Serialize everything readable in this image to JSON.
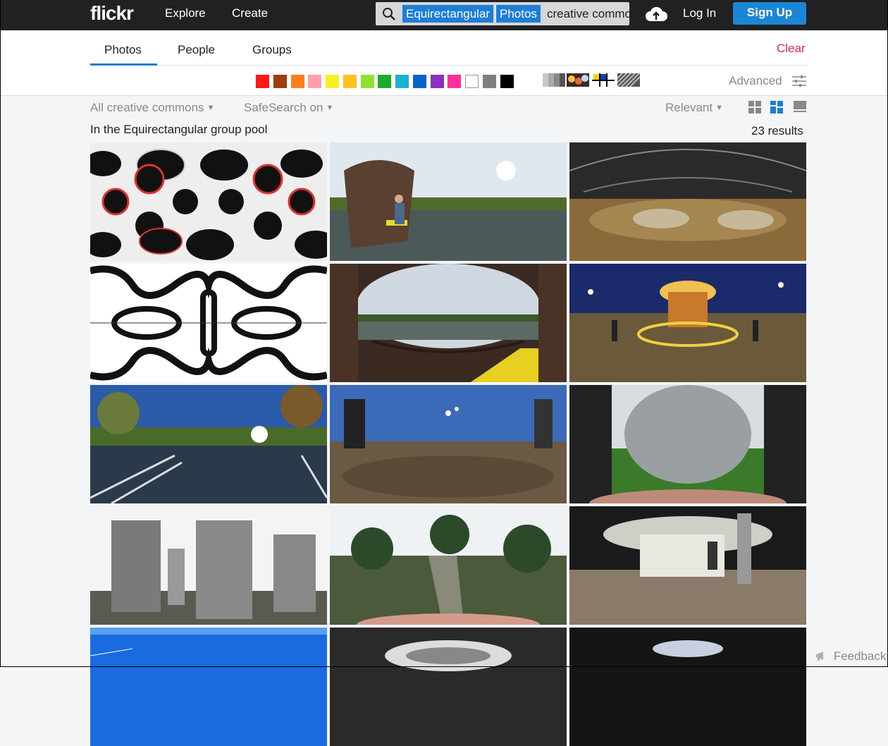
{
  "header": {
    "logo": "flickr",
    "explore": "Explore",
    "create": "Create",
    "search_chip_1": "Equirectangular",
    "search_chip_2": "Photos",
    "search_text": "creative commons",
    "login": "Log In",
    "signup": "Sign Up"
  },
  "tabs": [
    {
      "label": "Photos",
      "active": true
    },
    {
      "label": "People",
      "active": false
    },
    {
      "label": "Groups",
      "active": false
    }
  ],
  "clear_label": "Clear",
  "advanced_label": "Advanced",
  "color_swatches": [
    "#ff1a1a",
    "#9c3d12",
    "#ff7f1a",
    "#ff9fa8",
    "#f7ef23",
    "#fec123",
    "#8ee234",
    "#1cac2a",
    "#1ab2d1",
    "#0a64c8",
    "#8c2ec0",
    "#ff2f9e",
    "#ffffff",
    "#7f7f7f",
    "#000000"
  ],
  "filters": {
    "license": "All creative commons",
    "safesearch": "SafeSearch on",
    "sort": "Relevant"
  },
  "context": "In the Equirectangular group pool",
  "results": "23 results",
  "photos": [
    {
      "name": "photo-soccer-ball-pattern",
      "kind": "ball-pattern"
    },
    {
      "name": "photo-hut-by-lake",
      "kind": "lake-hut"
    },
    {
      "name": "photo-indoor-skatepark",
      "kind": "skatepark"
    },
    {
      "name": "photo-black-white-ball-pattern",
      "kind": "bw-pattern"
    },
    {
      "name": "photo-hut-porch-lake",
      "kind": "porch"
    },
    {
      "name": "photo-night-carousel",
      "kind": "carousel"
    },
    {
      "name": "photo-lake-bridge-sunny",
      "kind": "bridge"
    },
    {
      "name": "photo-people-gravel-birds",
      "kind": "gravel"
    },
    {
      "name": "photo-concrete-skate-bowl",
      "kind": "bowl"
    },
    {
      "name": "photo-holocaust-memorial-stelae",
      "kind": "stelae"
    },
    {
      "name": "photo-forest-path",
      "kind": "forest"
    },
    {
      "name": "photo-underground-garage",
      "kind": "garage"
    },
    {
      "name": "photo-blue-sky-partial",
      "kind": "sky"
    },
    {
      "name": "photo-car-interior-partial",
      "kind": "car"
    },
    {
      "name": "photo-dark-hall-partial",
      "kind": "dark"
    }
  ],
  "feedback": "Feedback"
}
